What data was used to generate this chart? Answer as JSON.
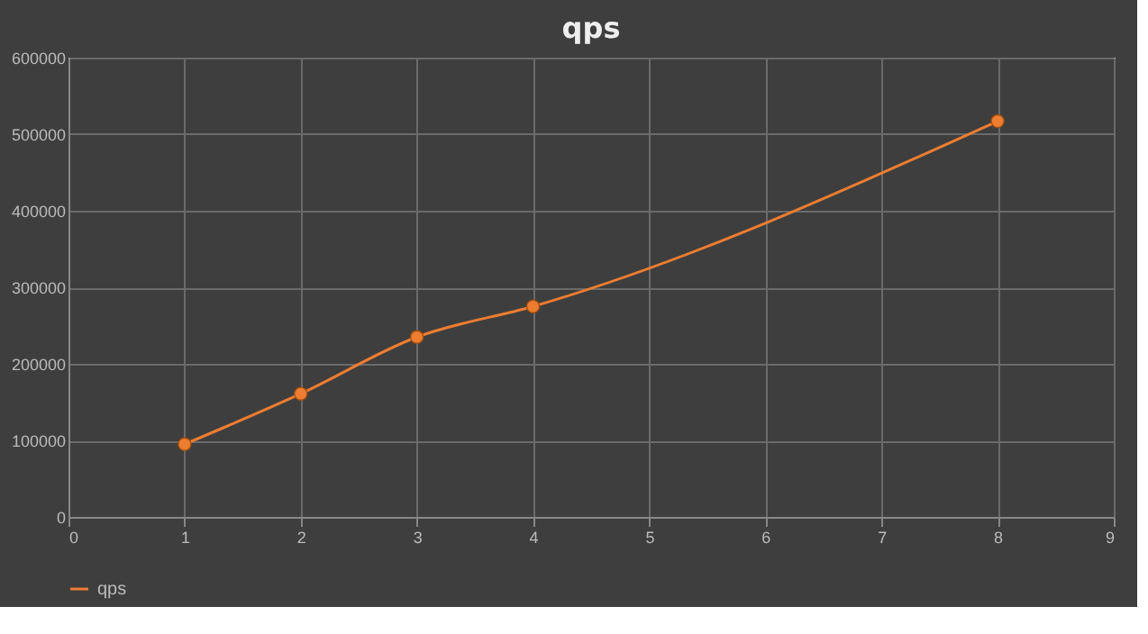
{
  "chart_data": {
    "type": "line",
    "title": "qps",
    "x": [
      1,
      2,
      3,
      4,
      8
    ],
    "series": [
      {
        "name": "qps",
        "color": "#ed7d31",
        "values": [
          95000,
          161000,
          235000,
          275000,
          517000
        ]
      }
    ],
    "xlim": [
      0,
      9
    ],
    "xticks": [
      0,
      1,
      2,
      3,
      4,
      5,
      6,
      7,
      8,
      9
    ],
    "ylim": [
      0,
      600000
    ],
    "yticks": [
      0,
      100000,
      200000,
      300000,
      400000,
      500000,
      600000
    ],
    "grid": true,
    "legend": "bottom",
    "marker": "circle",
    "line_style": "solid"
  }
}
